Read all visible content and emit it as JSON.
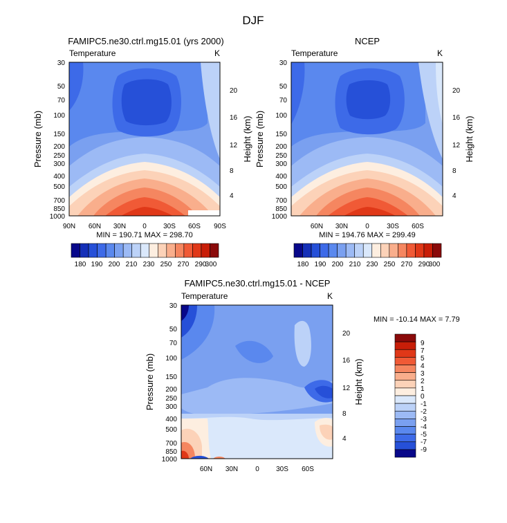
{
  "main_title": "DJF",
  "chart_data": [
    {
      "type": "heatmap",
      "title": "FAMIPC5.ne30.ctrl.mg15.01 (yrs 2000)",
      "subtitle_left": "Temperature",
      "subtitle_right": "K",
      "ylabel": "Pressure (mb)",
      "ylabel_right": "Height (km)",
      "y_ticks": [
        "30",
        "50",
        "70",
        "100",
        "150",
        "200",
        "250",
        "300",
        "400",
        "500",
        "700",
        "850",
        "1000"
      ],
      "y_right_ticks": [
        "20",
        "16",
        "12",
        "8",
        "4"
      ],
      "x_ticks": [
        "90N",
        "60N",
        "30N",
        "0",
        "30S",
        "60S",
        "90S"
      ],
      "stats": "MIN = 190.71   MAX = 298.70",
      "colorbar_labels": [
        "180",
        "190",
        "200",
        "210",
        "230",
        "250",
        "270",
        "290",
        "300"
      ]
    },
    {
      "type": "heatmap",
      "title": "NCEP",
      "subtitle_left": "Temperature",
      "subtitle_right": "K",
      "ylabel": "Pressure (mb)",
      "ylabel_right": "Height (km)",
      "y_ticks": [
        "30",
        "50",
        "70",
        "100",
        "150",
        "200",
        "250",
        "300",
        "400",
        "500",
        "700",
        "850",
        "1000"
      ],
      "y_right_ticks": [
        "20",
        "16",
        "12",
        "8",
        "4"
      ],
      "x_ticks": [
        "60N",
        "30N",
        "0",
        "30S",
        "60S"
      ],
      "stats": "MIN = 194.76   MAX = 299.49",
      "colorbar_labels": [
        "180",
        "190",
        "200",
        "210",
        "230",
        "250",
        "270",
        "290",
        "300"
      ]
    },
    {
      "type": "heatmap",
      "title": "FAMIPC5.ne30.ctrl.mg15.01 - NCEP",
      "subtitle_left": "Temperature",
      "subtitle_right": "K",
      "ylabel": "Pressure (mb)",
      "ylabel_right": "Height (km)",
      "y_ticks": [
        "30",
        "50",
        "70",
        "100",
        "150",
        "200",
        "250",
        "300",
        "400",
        "500",
        "700",
        "850",
        "1000"
      ],
      "y_right_ticks": [
        "20",
        "16",
        "12",
        "8",
        "4"
      ],
      "x_ticks": [
        "60N",
        "30N",
        "0",
        "30S",
        "60S"
      ],
      "stats": "MIN = -10.14   MAX =    7.79",
      "colorbar_labels": [
        "9",
        "7",
        "5",
        "4",
        "3",
        "2",
        "1",
        "0",
        "-1",
        "-2",
        "-3",
        "-4",
        "-5",
        "-7",
        "-9"
      ]
    }
  ],
  "colors": {
    "temp_scale": [
      "#08088a",
      "#1530b8",
      "#2650d8",
      "#3d6ae8",
      "#5a88ee",
      "#7aa0f0",
      "#9cbaf5",
      "#bcd2f8",
      "#dae8fb",
      "#fdeee0",
      "#fcd2b8",
      "#f9ae8c",
      "#f58660",
      "#f05a36",
      "#e03818",
      "#c81e08",
      "#8a0a0a"
    ],
    "diff_scale": [
      "#8a0a0a",
      "#c81e08",
      "#e03818",
      "#f05a36",
      "#f58660",
      "#f9ae8c",
      "#fcd2b8",
      "#fdeee0",
      "#dae8fb",
      "#bcd2f8",
      "#9cbaf5",
      "#7aa0f0",
      "#5a88ee",
      "#3d6ae8",
      "#2650d8",
      "#08088a"
    ]
  }
}
